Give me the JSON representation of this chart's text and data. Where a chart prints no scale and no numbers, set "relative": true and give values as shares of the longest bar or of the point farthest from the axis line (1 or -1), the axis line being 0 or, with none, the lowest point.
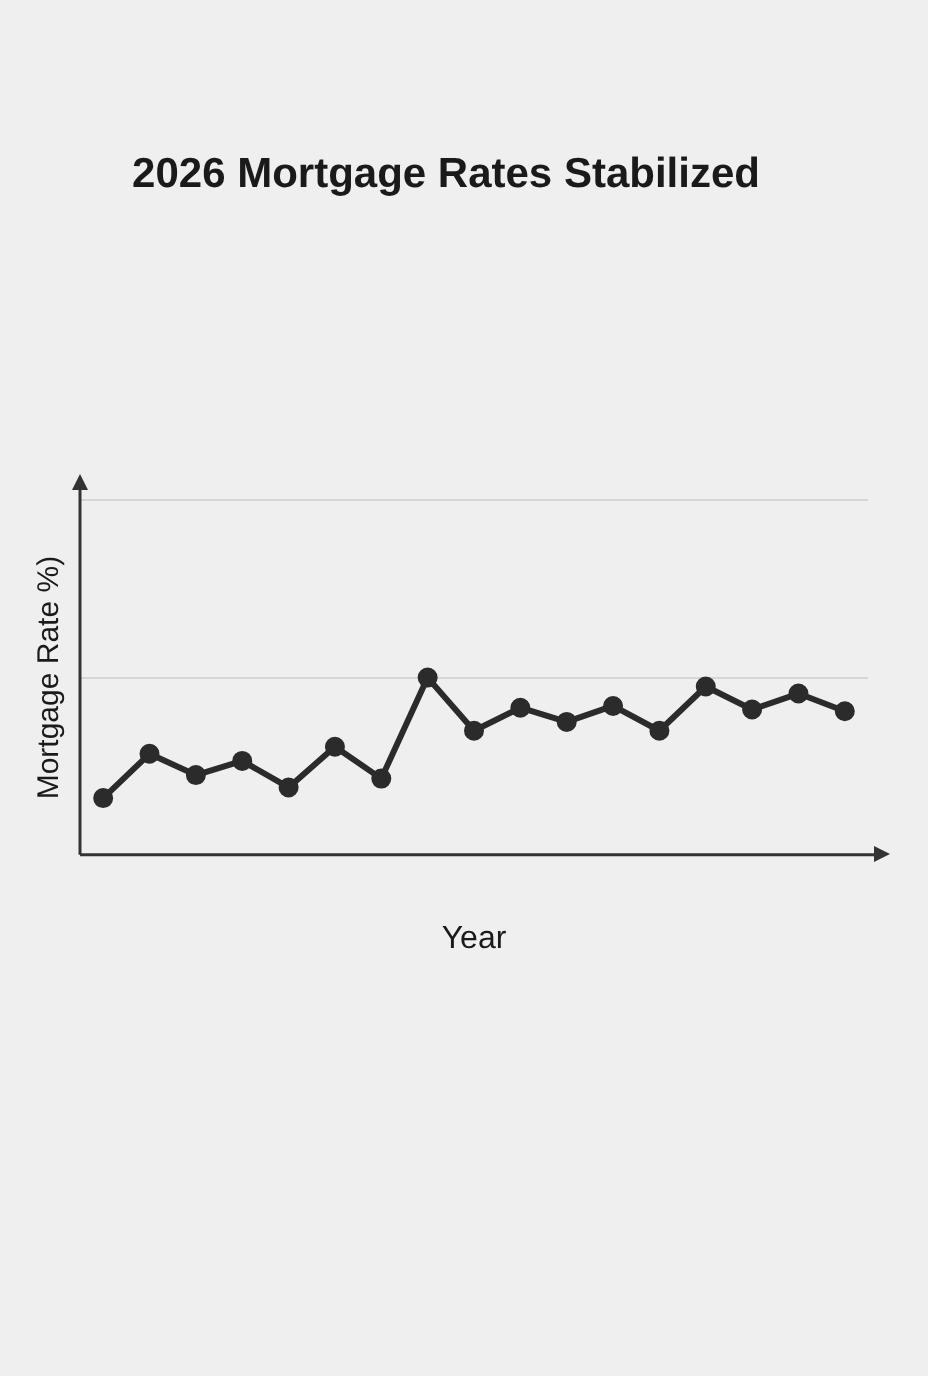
{
  "chart_data": {
    "type": "line",
    "title": "2026 Mortgage Rates Stabilized",
    "xlabel": "Year",
    "ylabel": "Mortgage Rate %)",
    "relative": true,
    "grid": "y",
    "marker": "circle",
    "line_style": "solid",
    "legend": false,
    "categories": [
      null,
      null,
      null,
      null,
      null,
      null,
      null,
      null,
      null,
      null,
      null,
      null,
      null,
      null,
      null,
      null,
      null
    ],
    "series": [
      {
        "color": "#2b2b2b",
        "values": [
          0.32,
          0.57,
          0.45,
          0.53,
          0.38,
          0.61,
          0.43,
          1,
          0.7,
          0.83,
          0.75,
          0.84,
          0.7,
          0.95,
          0.82,
          0.91,
          0.81
        ]
      }
    ]
  }
}
